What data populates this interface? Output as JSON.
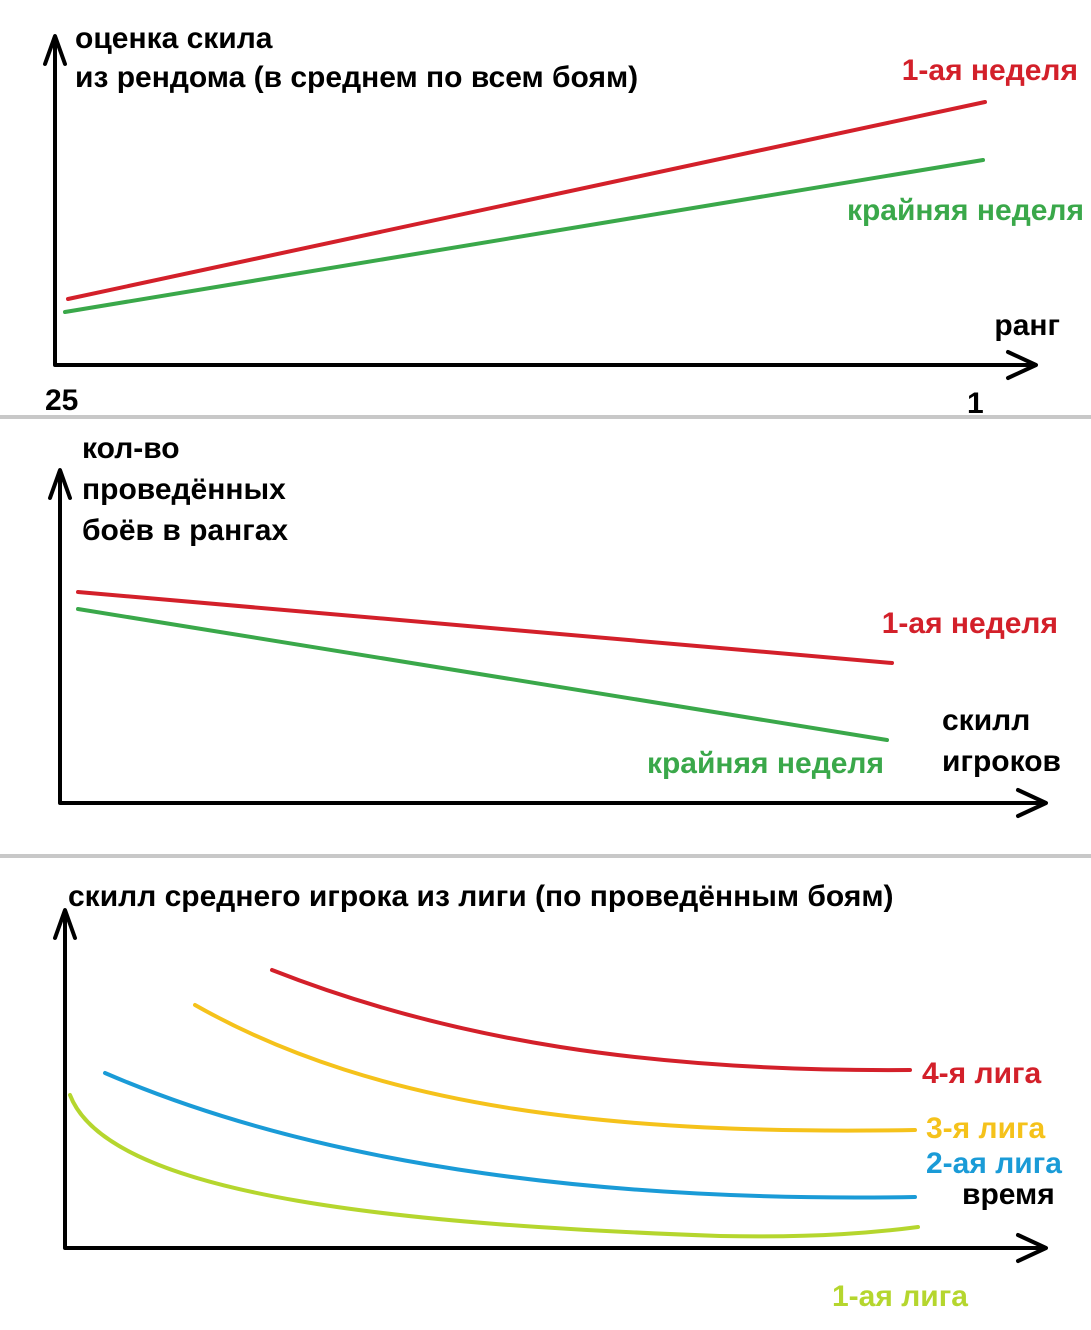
{
  "panels": [
    {
      "y_label": [
        "оценка скила",
        "из рендома (в среднем по всем боям)"
      ],
      "x_label": "ранг",
      "x_start": "25",
      "x_end": "1",
      "lines": [
        "1-ая неделя",
        "крайняя неделя"
      ]
    },
    {
      "y_label": [
        "кол-во",
        "проведённых",
        "боёв в рангах"
      ],
      "x_label": [
        "скилл",
        "игроков"
      ],
      "lines": [
        "1-ая неделя",
        "крайняя неделя"
      ]
    },
    {
      "title": "скилл среднего игрока из лиги (по проведённым боям)",
      "x_label": "время",
      "lines": [
        "4-я лига",
        "3-я лига",
        "2-ая лига",
        "1-ая лига"
      ]
    }
  ]
}
